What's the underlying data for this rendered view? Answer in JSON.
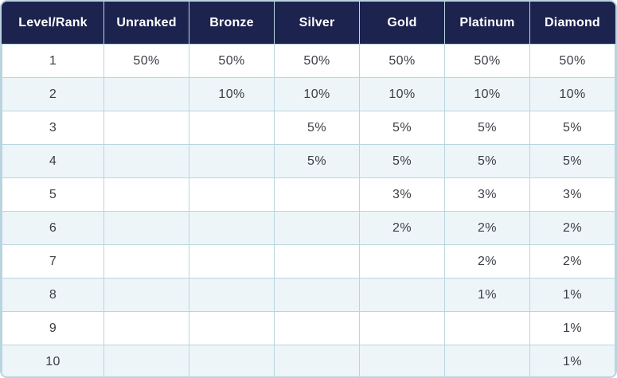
{
  "colors": {
    "header_bg": "#1d234f",
    "header_text": "#ffffff",
    "row_stripe_bg": "#edf5f8",
    "row_plain_bg": "#ffffff",
    "border": "#b9d6e0",
    "body_text": "#3a3d44"
  },
  "chart_data": {
    "type": "table",
    "title": "",
    "columns": [
      "Level/Rank",
      "Unranked",
      "Bronze",
      "Silver",
      "Gold",
      "Platinum",
      "Diamond"
    ],
    "rows": [
      [
        "1",
        "50%",
        "50%",
        "50%",
        "50%",
        "50%",
        "50%"
      ],
      [
        "2",
        "",
        "10%",
        "10%",
        "10%",
        "10%",
        "10%"
      ],
      [
        "3",
        "",
        "",
        "5%",
        "5%",
        "5%",
        "5%"
      ],
      [
        "4",
        "",
        "",
        "5%",
        "5%",
        "5%",
        "5%"
      ],
      [
        "5",
        "",
        "",
        "",
        "3%",
        "3%",
        "3%"
      ],
      [
        "6",
        "",
        "",
        "",
        "2%",
        "2%",
        "2%"
      ],
      [
        "7",
        "",
        "",
        "",
        "",
        "2%",
        "2%"
      ],
      [
        "8",
        "",
        "",
        "",
        "",
        "1%",
        "1%"
      ],
      [
        "9",
        "",
        "",
        "",
        "",
        "",
        "1%"
      ],
      [
        "10",
        "",
        "",
        "",
        "",
        "",
        "1%"
      ]
    ]
  }
}
